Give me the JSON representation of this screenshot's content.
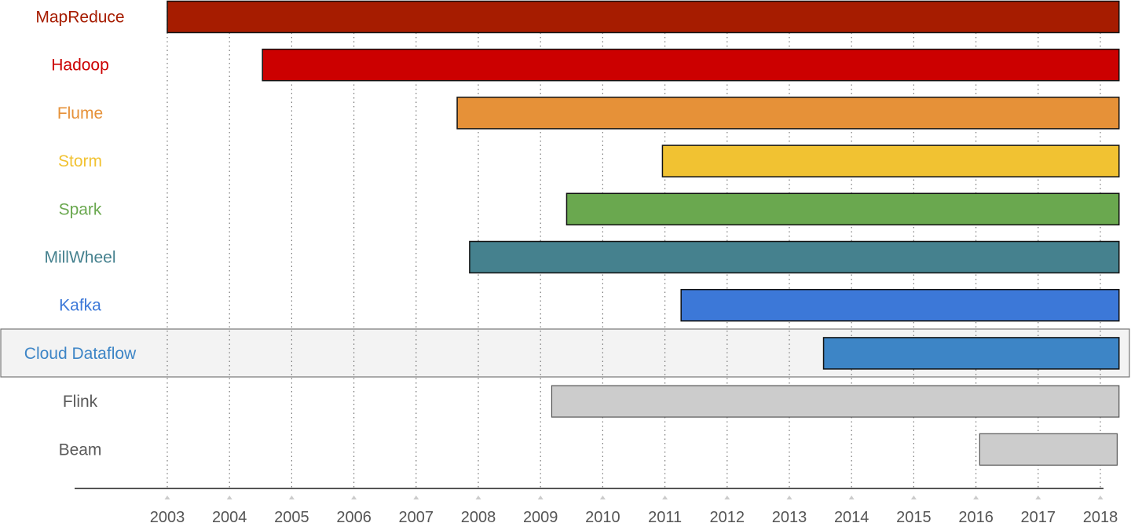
{
  "chart_data": {
    "type": "bar",
    "orientation": "horizontal-timeline",
    "x_ticks": [
      "2003",
      "2004",
      "2005",
      "2006",
      "2007",
      "2008",
      "2009",
      "2010",
      "2011",
      "2012",
      "2013",
      "2014",
      "2015",
      "2016",
      "2017",
      "2018"
    ],
    "xlim": [
      2003,
      2018.3
    ],
    "highlighted_row": "Cloud Dataflow",
    "grid": "vertical dotted",
    "series": [
      {
        "label": "MapReduce",
        "start": 2003.0,
        "end": 2018.3,
        "color": "#a61c00",
        "label_color": "#a61c00"
      },
      {
        "label": "Hadoop",
        "start": 2004.53,
        "end": 2018.3,
        "color": "#cc0000",
        "label_color": "#cc0000"
      },
      {
        "label": "Flume",
        "start": 2007.66,
        "end": 2018.3,
        "color": "#e69138",
        "label_color": "#e69138"
      },
      {
        "label": "Storm",
        "start": 2010.96,
        "end": 2018.3,
        "color": "#f1c232",
        "label_color": "#f1c232"
      },
      {
        "label": "Spark",
        "start": 2009.42,
        "end": 2018.3,
        "color": "#6aa84f",
        "label_color": "#6aa84f"
      },
      {
        "label": "MillWheel",
        "start": 2007.86,
        "end": 2018.3,
        "color": "#45818e",
        "label_color": "#45818e"
      },
      {
        "label": "Kafka",
        "start": 2011.26,
        "end": 2018.3,
        "color": "#3c78d8",
        "label_color": "#3c78d8"
      },
      {
        "label": "Cloud Dataflow",
        "start": 2013.55,
        "end": 2018.3,
        "color": "#3d85c6",
        "label_color": "#3d85c6"
      },
      {
        "label": "Flink",
        "start": 2009.18,
        "end": 2018.3,
        "color": "#cccccc",
        "label_color": "#595959"
      },
      {
        "label": "Beam",
        "start": 2016.06,
        "end": 2018.27,
        "color": "#cccccc",
        "label_color": "#595959"
      }
    ]
  }
}
